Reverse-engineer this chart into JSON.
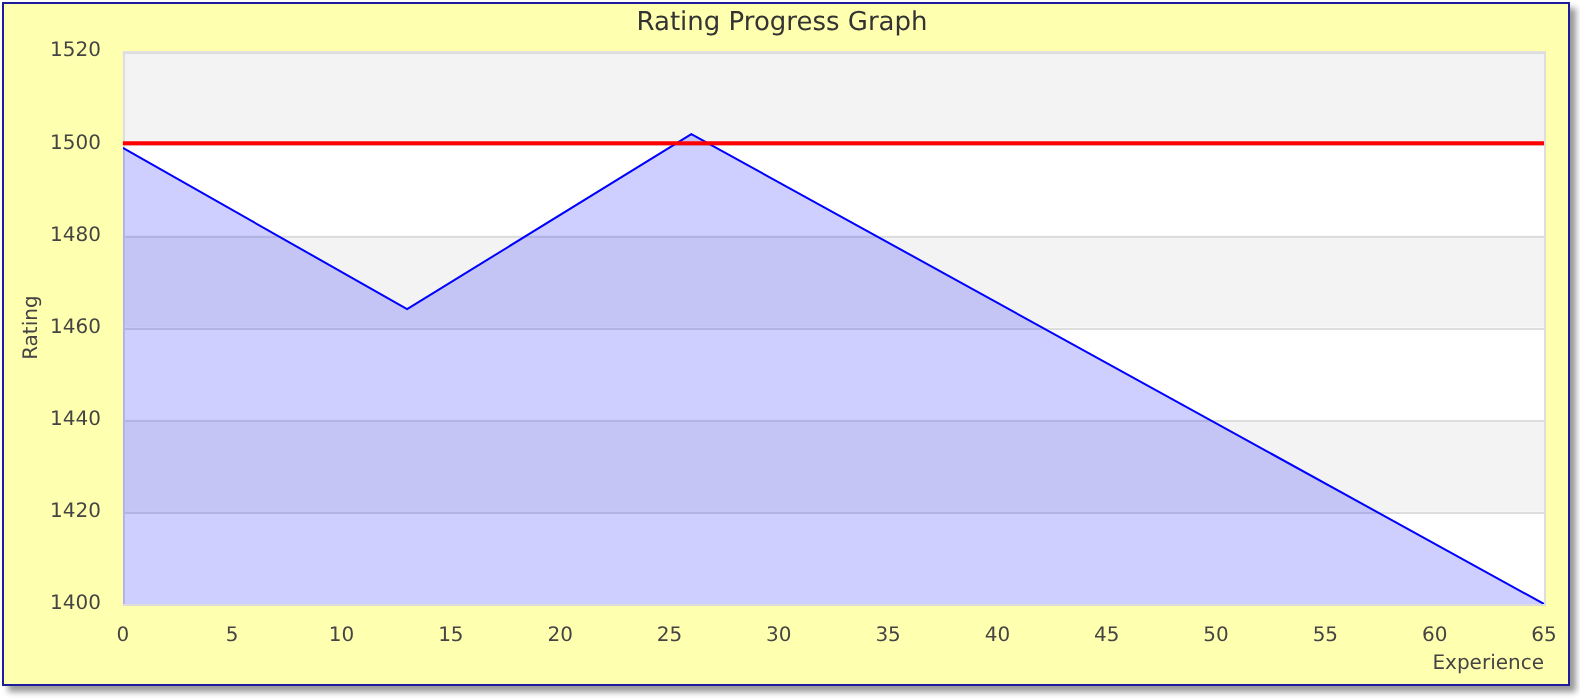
{
  "chart_data": {
    "type": "area",
    "title": "Rating Progress Graph",
    "xlabel": "Experience",
    "ylabel": "Rating",
    "x": [
      0,
      13,
      26,
      65
    ],
    "series": [
      {
        "color": "#0000ff",
        "values": [
          1499,
          1464,
          1502,
          1400
        ]
      }
    ],
    "xlim": [
      0,
      65
    ],
    "xticks": [
      0,
      5,
      10,
      15,
      20,
      25,
      30,
      35,
      40,
      45,
      50,
      55,
      60,
      65
    ],
    "ylim": [
      1400,
      1520
    ],
    "yticks": [
      1400,
      1420,
      1440,
      1460,
      1480,
      1500,
      1520
    ],
    "ref_lines": [
      {
        "axis": "y",
        "value": 1500,
        "color": "#ff0000"
      }
    ],
    "grid": "y",
    "legend": false,
    "marker": "none"
  }
}
